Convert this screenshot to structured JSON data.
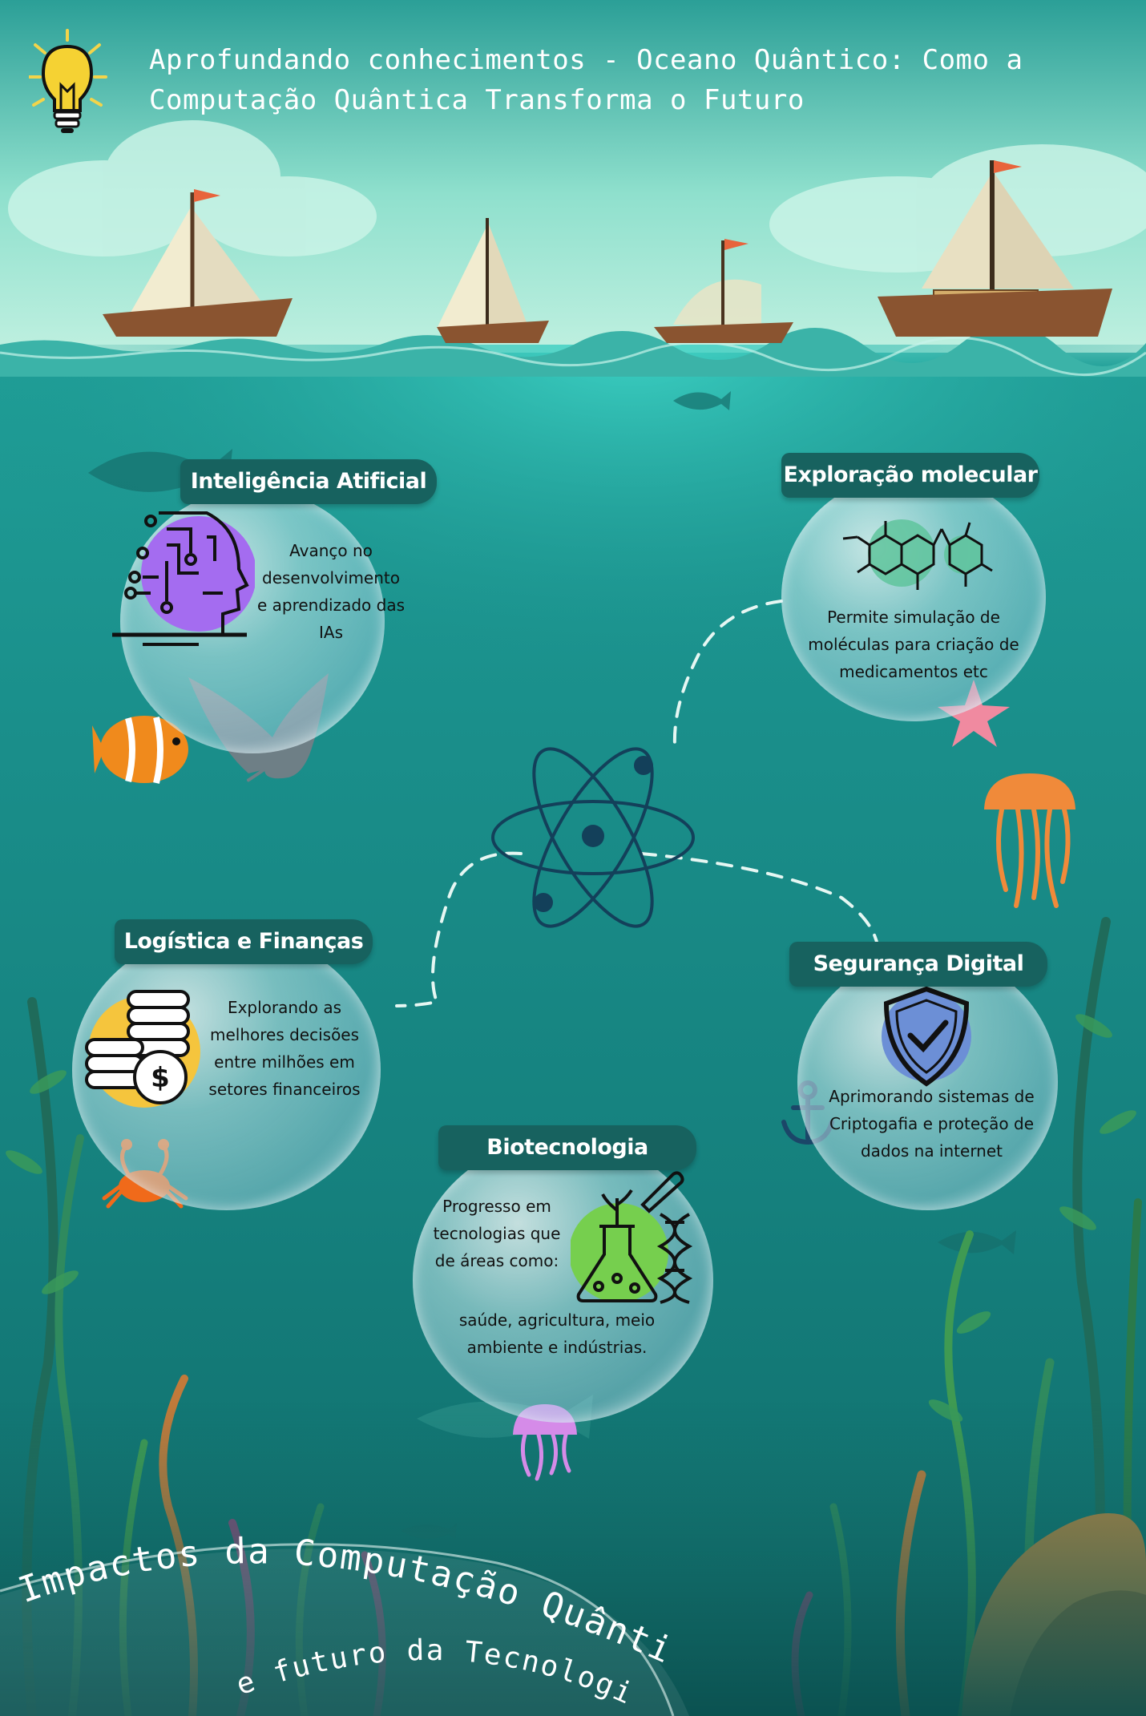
{
  "title": "Aprofundando conhecimentos - Oceano Quântico: Como a Computação Quântica Transforma o Futuro",
  "cards": {
    "ai": {
      "heading": "Inteligência Atificial",
      "text": "Avanço no desenvolvimento e aprendizado das IAs"
    },
    "molecular": {
      "heading": "Exploração molecular",
      "text": "Permite simulação de moléculas para criação de medicamentos etc"
    },
    "logistics": {
      "heading": "Logística e Finanças",
      "text": "Explorando as melhores decisões entre milhões em setores financeiros"
    },
    "security": {
      "heading": "Segurança Digital",
      "text": "Aprimorando sistemas de Criptogafia e proteção de dados na internet"
    },
    "biotech": {
      "heading": "Biotecnologia",
      "text": "Progresso em tecnologias que de áreas como:",
      "text2": "saúde, agricultura, meio ambiente e indústrias."
    }
  },
  "footer": {
    "line1": "Impactos da Computação Quântica",
    "line2": "e futuro da Tecnologia"
  },
  "colors": {
    "banner": "#17625f",
    "ai_accent": "#a46cf0",
    "molecule_accent": "#5fc49c",
    "coin_accent": "#f5c53d",
    "shield_accent": "#6c8fd6",
    "bio_accent": "#76cf4e"
  },
  "icons": [
    "lightbulb-icon",
    "ai-head-icon",
    "molecule-icon",
    "coins-icon",
    "shield-check-icon",
    "lab-flask-icon",
    "atom-icon"
  ]
}
